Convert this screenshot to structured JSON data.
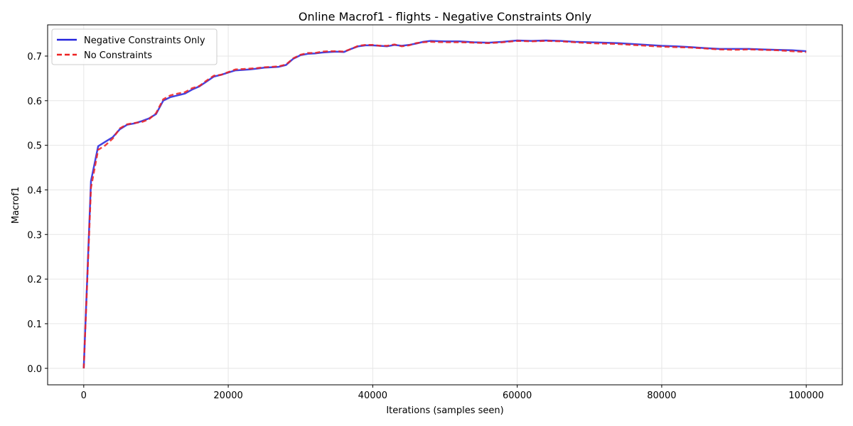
{
  "chart_data": {
    "type": "line",
    "title": "Online Macrof1 - flights - Negative Constraints Only",
    "xlabel": "Iterations (samples seen)",
    "ylabel": "Macrof1",
    "xlim": [
      -5000,
      105000
    ],
    "ylim": [
      -0.037,
      0.77
    ],
    "xticks": [
      0,
      20000,
      40000,
      60000,
      80000,
      100000
    ],
    "xtick_labels": [
      "0",
      "20000",
      "40000",
      "60000",
      "80000",
      "100000"
    ],
    "yticks": [
      0.0,
      0.1,
      0.2,
      0.3,
      0.4,
      0.5,
      0.6,
      0.7
    ],
    "ytick_labels": [
      "0.0",
      "0.1",
      "0.2",
      "0.3",
      "0.4",
      "0.5",
      "0.6",
      "0.7"
    ],
    "grid": true,
    "legend_position": "top-left",
    "x": [
      0,
      1000,
      2000,
      3000,
      4000,
      5000,
      6000,
      7000,
      8000,
      9000,
      10000,
      11000,
      12000,
      13000,
      14000,
      15000,
      16000,
      17000,
      18000,
      19000,
      20000,
      21000,
      22000,
      23000,
      24000,
      25000,
      26000,
      27000,
      28000,
      29000,
      30000,
      31000,
      32000,
      33000,
      34000,
      35000,
      36000,
      37000,
      38000,
      39000,
      40000,
      41000,
      42000,
      43000,
      44000,
      45000,
      46000,
      47000,
      48000,
      50000,
      52000,
      54000,
      56000,
      58000,
      60000,
      62000,
      64000,
      66000,
      68000,
      70000,
      72000,
      74000,
      76000,
      78000,
      80000,
      82000,
      84000,
      86000,
      88000,
      90000,
      92000,
      94000,
      96000,
      98000,
      100000
    ],
    "series": [
      {
        "name": "Negative Constraints Only",
        "color": "#2222dd",
        "style": "solid",
        "values": [
          0.0,
          0.42,
          0.498,
          0.508,
          0.518,
          0.536,
          0.546,
          0.549,
          0.554,
          0.56,
          0.57,
          0.6,
          0.608,
          0.612,
          0.616,
          0.625,
          0.632,
          0.643,
          0.654,
          0.658,
          0.663,
          0.668,
          0.669,
          0.67,
          0.672,
          0.674,
          0.675,
          0.676,
          0.68,
          0.694,
          0.702,
          0.705,
          0.706,
          0.708,
          0.709,
          0.71,
          0.709,
          0.716,
          0.722,
          0.724,
          0.724,
          0.723,
          0.722,
          0.725,
          0.723,
          0.725,
          0.728,
          0.732,
          0.734,
          0.733,
          0.733,
          0.731,
          0.73,
          0.732,
          0.735,
          0.734,
          0.735,
          0.734,
          0.732,
          0.731,
          0.73,
          0.729,
          0.727,
          0.725,
          0.723,
          0.722,
          0.72,
          0.718,
          0.716,
          0.716,
          0.716,
          0.715,
          0.714,
          0.713,
          0.711
        ]
      },
      {
        "name": "No Constraints",
        "color": "#ee2222",
        "style": "dashed",
        "values": [
          0.0,
          0.405,
          0.49,
          0.5,
          0.515,
          0.538,
          0.547,
          0.55,
          0.552,
          0.558,
          0.572,
          0.603,
          0.612,
          0.616,
          0.619,
          0.628,
          0.633,
          0.645,
          0.656,
          0.658,
          0.664,
          0.67,
          0.671,
          0.672,
          0.673,
          0.675,
          0.676,
          0.677,
          0.681,
          0.695,
          0.703,
          0.707,
          0.707,
          0.71,
          0.711,
          0.711,
          0.71,
          0.716,
          0.723,
          0.725,
          0.725,
          0.723,
          0.723,
          0.726,
          0.722,
          0.724,
          0.729,
          0.731,
          0.732,
          0.731,
          0.731,
          0.73,
          0.729,
          0.731,
          0.734,
          0.733,
          0.734,
          0.733,
          0.731,
          0.729,
          0.728,
          0.727,
          0.725,
          0.723,
          0.721,
          0.72,
          0.719,
          0.717,
          0.715,
          0.714,
          0.715,
          0.714,
          0.713,
          0.711,
          0.709
        ]
      }
    ]
  }
}
